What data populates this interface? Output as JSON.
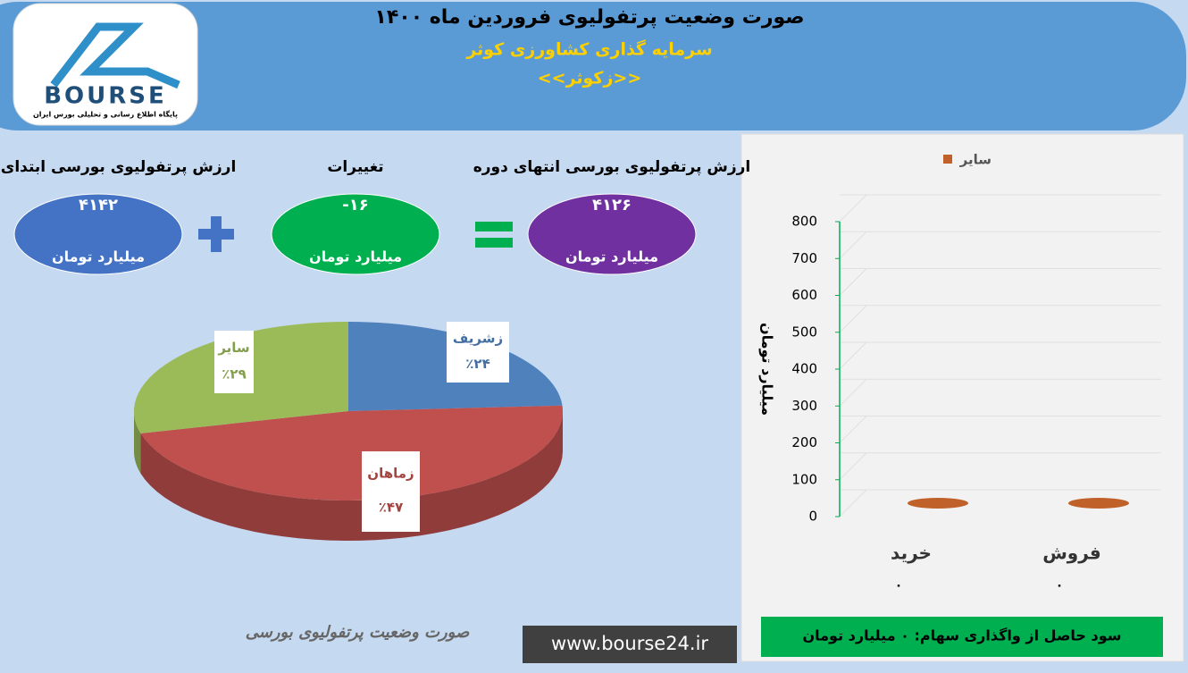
{
  "header": {
    "title": "صورت وضعیت پرتفولیوی فروردین ماه ۱۴۰۰",
    "company": "سرمایه گذاری کشاورزی کوثر",
    "symbol": "<<زکوثر>>"
  },
  "logo": {
    "text": "BOURSE",
    "tagline": "پایگاه اطلاع رسانی و تحلیلی بورس ایران"
  },
  "summary": [
    {
      "label": "ارزش پرتفولیوی بورسی ابتدای دوره",
      "value": "۴۱۴۲",
      "unit": "میلیارد تومان"
    },
    {
      "label": "تغییرات",
      "value": "-۱۶",
      "unit": "میلیارد تومان"
    },
    {
      "label": "ارزش پرتفولیوی بورسی انتهای دوره",
      "value": "۴۱۲۶",
      "unit": "میلیارد تومان"
    }
  ],
  "chart_data": [
    {
      "type": "pie",
      "categories": [
        "زشریف",
        "زماهان",
        "سایر"
      ],
      "values": [
        24,
        47,
        29
      ],
      "value_labels": [
        "٪۲۴",
        "٪۴۷",
        "٪۲۹"
      ],
      "colors": [
        "#4f81bd",
        "#c0504d",
        "#9bbb59"
      ]
    },
    {
      "type": "bar",
      "categories": [
        "خرید",
        "فروش"
      ],
      "series": [
        {
          "name": "سایر",
          "color": "#c0612a",
          "values": [
            0,
            0
          ],
          "value_labels": [
            "۰",
            "۰"
          ]
        }
      ],
      "ylim": [
        0,
        800
      ],
      "yticks": [
        0,
        100,
        200,
        300,
        400,
        500,
        600,
        700,
        800
      ],
      "y_label": "میلیارد تومان",
      "legend": "top"
    }
  ],
  "footer": {
    "caption": "صورت وضعیت پرتفولیوی بورسی",
    "website": "www.bourse24.ir",
    "profit": "سود حاصل از واگذاری سهام: ۰ میلیارد تومان"
  }
}
